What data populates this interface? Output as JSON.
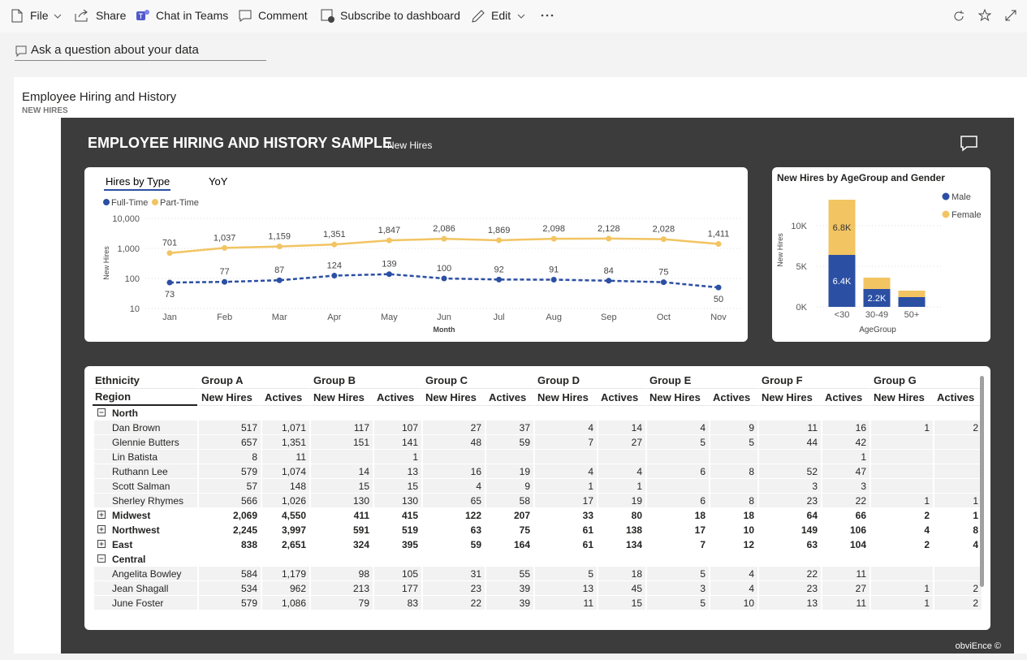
{
  "toolbar": {
    "items": [
      "File",
      "Share",
      "Chat in Teams",
      "Comment",
      "Subscribe to dashboard",
      "Edit"
    ]
  },
  "qna": {
    "placeholder": "Ask a question about your data"
  },
  "tile": {
    "title": "Employee Hiring and History",
    "subtitle": "NEW HIRES"
  },
  "report": {
    "title": "EMPLOYEE HIRING AND HISTORY SAMPLE",
    "subtitle": "New Hires",
    "tabs": [
      "Hires by Type",
      "YoY"
    ],
    "footer": "obviEnce ©"
  },
  "chart_data": [
    {
      "type": "line",
      "x_label": "Month",
      "y_label": "New Hires",
      "categories": [
        "Jan",
        "Feb",
        "Mar",
        "Apr",
        "May",
        "Jun",
        "Jul",
        "Aug",
        "Sep",
        "Oct",
        "Nov"
      ],
      "log_scale": true,
      "ylim": [
        10,
        10000
      ],
      "yticks": [
        10,
        100,
        {
          "value": 1000,
          "label": "1,000"
        },
        {
          "value": 10000,
          "label": "10,000"
        }
      ],
      "grid": true,
      "legend": "top-left",
      "series": [
        {
          "name": "Full-Time",
          "color": "#2b4fa3",
          "dashed": true,
          "values": [
            73,
            77,
            87,
            124,
            139,
            100,
            92,
            91,
            84,
            75,
            50
          ]
        },
        {
          "name": "Part-Time",
          "color": "#f2c462",
          "dashed": false,
          "values": [
            701,
            1037,
            1159,
            1351,
            1847,
            2086,
            1869,
            2098,
            2128,
            2028,
            1411
          ],
          "value_labels": [
            "701",
            "1,037",
            "1,159",
            "1,351",
            "1,847",
            "2,086",
            "1,869",
            "2,098",
            "2,128",
            "2,028",
            "1,411"
          ]
        }
      ]
    },
    {
      "type": "bar",
      "stacked": true,
      "title": "New Hires by AgeGroup and Gender",
      "x_label": "AgeGroup",
      "y_label": "New Hires",
      "categories": [
        "<30",
        "30-49",
        "50+"
      ],
      "ylim": [
        0,
        14000
      ],
      "yticks": [
        {
          "value": 0,
          "label": "0K"
        },
        {
          "value": 5000,
          "label": "5K"
        },
        {
          "value": 10000,
          "label": "10K"
        }
      ],
      "grid": true,
      "legend": "top-right",
      "series": [
        {
          "name": "Male",
          "color": "#2b4fa3",
          "values": [
            6400,
            2200,
            1200
          ],
          "value_labels": [
            "6.4K",
            "2.2K",
            null
          ]
        },
        {
          "name": "Female",
          "color": "#f2c462",
          "values": [
            6800,
            1400,
            800
          ],
          "value_labels": [
            "6.8K",
            null,
            null
          ]
        }
      ]
    }
  ],
  "table": {
    "header": {
      "column_dimension": "Ethnicity",
      "row_dimension": "Region",
      "groups": [
        "Group A",
        "Group B",
        "Group C",
        "Group D",
        "Group E",
        "Group F",
        "Group G"
      ],
      "measures": [
        "New Hires",
        "Actives"
      ]
    },
    "rows": [
      {
        "label": "North",
        "level": "region",
        "expanded": true,
        "cells": [
          null,
          null,
          null,
          null,
          null,
          null,
          null,
          null,
          null,
          null,
          null,
          null,
          null,
          null
        ]
      },
      {
        "label": "Dan Brown",
        "level": "person",
        "cells": [
          "517",
          "1,071",
          "117",
          "107",
          "27",
          "37",
          "4",
          "14",
          "4",
          "9",
          "11",
          "16",
          "1",
          "2"
        ]
      },
      {
        "label": "Glennie Butters",
        "level": "person",
        "cells": [
          "657",
          "1,351",
          "151",
          "141",
          "48",
          "59",
          "7",
          "27",
          "5",
          "5",
          "44",
          "42",
          null,
          null
        ]
      },
      {
        "label": "Lin Batista",
        "level": "person",
        "cells": [
          "8",
          "11",
          null,
          "1",
          null,
          null,
          null,
          null,
          null,
          null,
          null,
          "1",
          null,
          null
        ]
      },
      {
        "label": "Ruthann Lee",
        "level": "person",
        "cells": [
          "579",
          "1,074",
          "14",
          "13",
          "16",
          "19",
          "4",
          "4",
          "6",
          "8",
          "52",
          "47",
          null,
          null
        ]
      },
      {
        "label": "Scott Salman",
        "level": "person",
        "cells": [
          "57",
          "148",
          "15",
          "15",
          "4",
          "9",
          "1",
          "1",
          null,
          null,
          "3",
          "3",
          null,
          null
        ]
      },
      {
        "label": "Sherley Rhymes",
        "level": "person",
        "cells": [
          "566",
          "1,026",
          "130",
          "130",
          "65",
          "58",
          "17",
          "19",
          "6",
          "8",
          "23",
          "22",
          "1",
          "1"
        ]
      },
      {
        "label": "Midwest",
        "level": "region",
        "expanded": false,
        "cells": [
          "2,069",
          "4,550",
          "411",
          "415",
          "122",
          "207",
          "33",
          "80",
          "18",
          "18",
          "64",
          "66",
          "2",
          "1"
        ]
      },
      {
        "label": "Northwest",
        "level": "region",
        "expanded": false,
        "cells": [
          "2,245",
          "3,997",
          "591",
          "519",
          "63",
          "75",
          "61",
          "138",
          "17",
          "10",
          "149",
          "106",
          "4",
          "8"
        ]
      },
      {
        "label": "East",
        "level": "region",
        "expanded": false,
        "cells": [
          "838",
          "2,651",
          "324",
          "395",
          "59",
          "164",
          "61",
          "134",
          "7",
          "12",
          "63",
          "104",
          "2",
          "4"
        ]
      },
      {
        "label": "Central",
        "level": "region",
        "expanded": true,
        "cells": [
          null,
          null,
          null,
          null,
          null,
          null,
          null,
          null,
          null,
          null,
          null,
          null,
          null,
          null
        ]
      },
      {
        "label": "Angelita Bowley",
        "level": "person",
        "cells": [
          "584",
          "1,179",
          "98",
          "105",
          "31",
          "55",
          "5",
          "18",
          "5",
          "4",
          "22",
          "11",
          null,
          null
        ]
      },
      {
        "label": "Jean Shagall",
        "level": "person",
        "cells": [
          "534",
          "962",
          "213",
          "177",
          "23",
          "39",
          "13",
          "45",
          "3",
          "4",
          "23",
          "27",
          "1",
          "2"
        ]
      },
      {
        "label": "June Foster",
        "level": "person",
        "cells": [
          "579",
          "1,086",
          "79",
          "83",
          "22",
          "39",
          "11",
          "15",
          "5",
          "10",
          "13",
          "11",
          "1",
          "2"
        ]
      }
    ]
  }
}
